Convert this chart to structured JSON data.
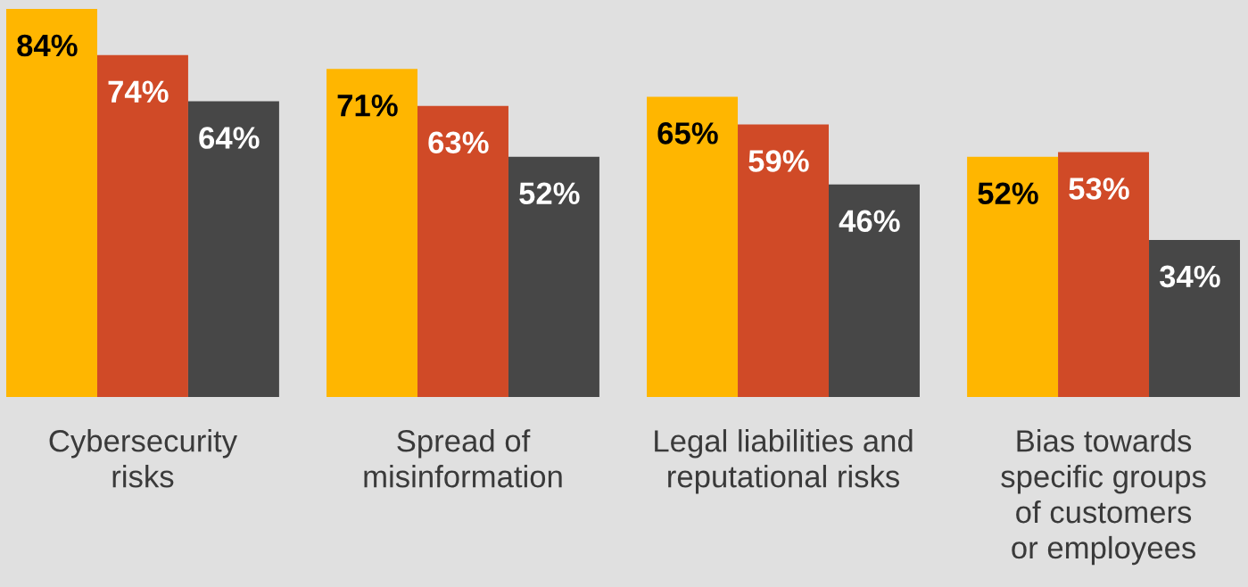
{
  "chart_data": {
    "type": "bar",
    "categories": [
      "Cybersecurity\nrisks",
      "Spread of\nmisinformation",
      "Legal liabilities and\nreputational risks",
      "Bias towards\nspecific groups\nof customers\nor employees"
    ],
    "series": [
      {
        "color": "#ffb600",
        "values": [
          84,
          71,
          65,
          52
        ],
        "value_labels": [
          "84%",
          "71%",
          "65%",
          "52%"
        ]
      },
      {
        "color": "#d04a27",
        "values": [
          74,
          63,
          59,
          53
        ],
        "value_labels": [
          "74%",
          "63%",
          "59%",
          "53%"
        ]
      },
      {
        "color": "#474747",
        "values": [
          64,
          52,
          46,
          34
        ],
        "value_labels": [
          "64%",
          "52%",
          "46%",
          "34%"
        ]
      }
    ],
    "grid": false,
    "legend": false
  }
}
